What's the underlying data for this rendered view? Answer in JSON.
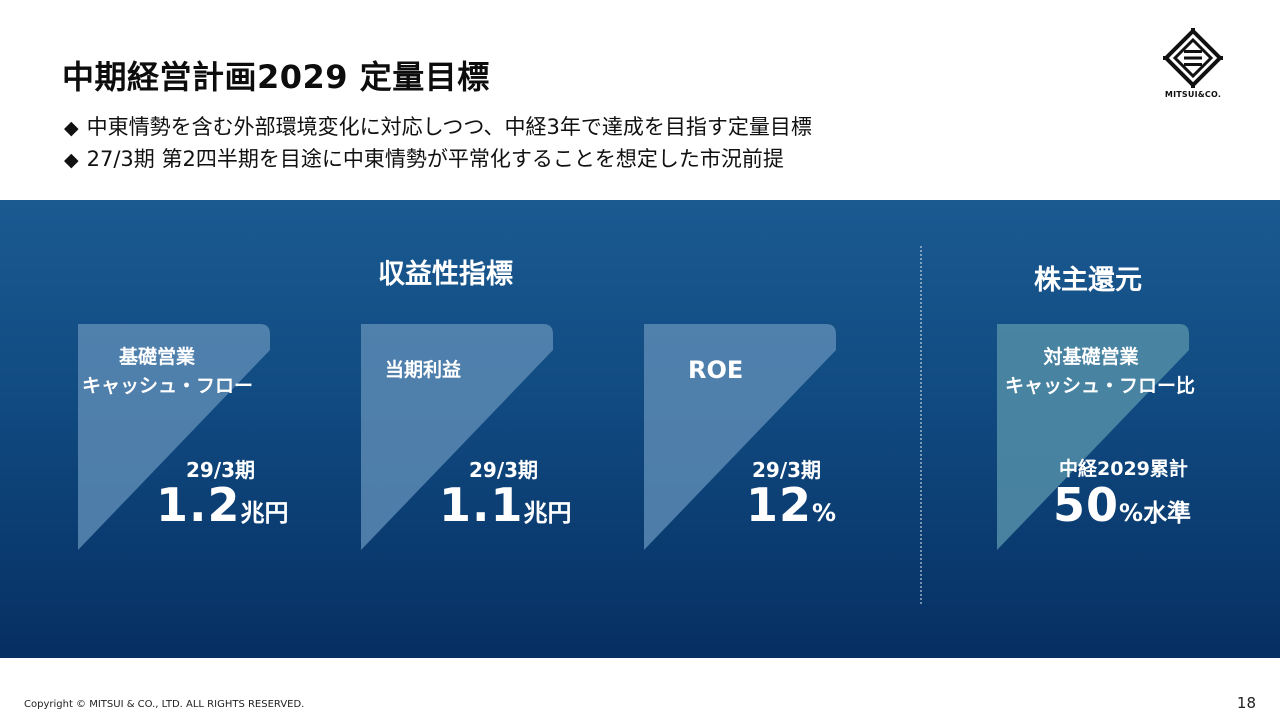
{
  "header": {
    "title": "中期経営計画2029 定量目標",
    "bullets": [
      "中東情勢を含む外部環境変化に対応しつつ、中経3年で達成を目指す定量目標",
      "27/3期 第2四半期を目途に中東情勢が平常化することを想定した市況前提"
    ],
    "bullet_marker": "◆"
  },
  "logo": {
    "text": "MITSUI&CO.",
    "icon": "mitsui-logo-icon"
  },
  "sections": {
    "profitability": "収益性指標",
    "shareholder": "株主還元"
  },
  "cards": [
    {
      "label_lines": [
        "基礎営業",
        "キャッシュ・フロー"
      ],
      "period": "29/3期",
      "value": "1.2",
      "unit": "兆円"
    },
    {
      "label_lines": [
        "当期利益"
      ],
      "period": "29/3期",
      "value": "1.1",
      "unit": "兆円"
    },
    {
      "label_lines": [
        "ROE"
      ],
      "period": "29/3期",
      "value": "12",
      "unit": "%"
    },
    {
      "label_lines": [
        "対基礎営業",
        "キャッシュ・フロー比"
      ],
      "period": "中経2029累計",
      "value": "50",
      "unit": "%水準"
    }
  ],
  "footer": {
    "copyright": "Copyright © MITSUI & CO., LTD. ALL RIGHTS RESERVED.",
    "page": "18"
  },
  "colors": {
    "band_top": "#1a5a91",
    "band_bottom": "#062f63",
    "card_fill_blue": "#5b88b3",
    "card_fill_teal": "#4f8aa5"
  }
}
